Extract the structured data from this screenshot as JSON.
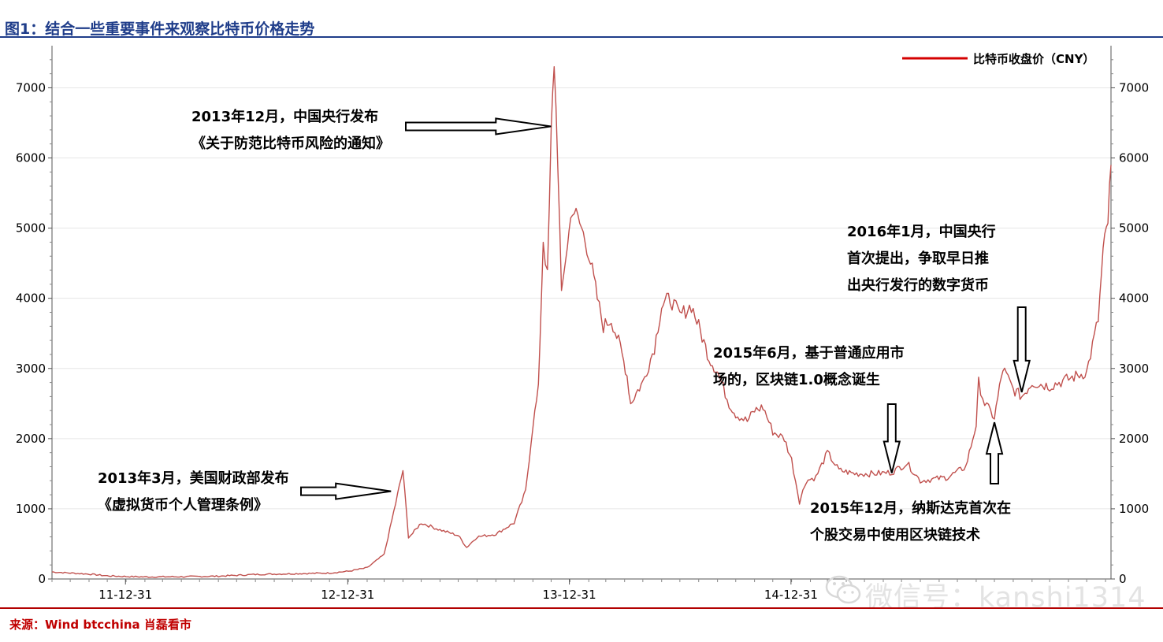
{
  "header": {
    "title": "图1：结合一些重要事件来观察比特币价格走势"
  },
  "footer": {
    "source": "来源：Wind btcchina 肖磊看市"
  },
  "watermark": {
    "text": "微信号：kanshi1314"
  },
  "colors": {
    "series": "#c0504d",
    "title": "#1f3d8a",
    "source": "#c00000",
    "legend_line": "#d40000"
  },
  "chart_data": {
    "type": "line",
    "title": "",
    "xlabel": "",
    "ylabel": "",
    "legend": {
      "position": "top-right",
      "label": "比特币收盘价（CNY）"
    },
    "x_ticks": [
      "11-12-31",
      "12-12-31",
      "13-12-31",
      "14-12-31"
    ],
    "y_ticks": [
      0,
      1000,
      2000,
      3000,
      4000,
      5000,
      6000,
      7000
    ],
    "ylim": [
      0,
      7600
    ],
    "xlim": [
      "2011-09-01",
      "2016-06-10"
    ],
    "grid": "horizontal",
    "series": [
      {
        "name": "比特币收盘价（CNY）",
        "x": [
          "2011-09-01",
          "2011-10-01",
          "2011-11-01",
          "2011-12-01",
          "2012-01-01",
          "2012-02-01",
          "2012-04-01",
          "2012-06-01",
          "2012-08-01",
          "2012-09-01",
          "2012-10-01",
          "2012-12-01",
          "2013-01-01",
          "2013-02-01",
          "2013-03-01",
          "2013-03-20",
          "2013-04-01",
          "2013-04-10",
          "2013-04-17",
          "2013-05-01",
          "2013-06-01",
          "2013-07-01",
          "2013-07-15",
          "2013-08-01",
          "2013-09-01",
          "2013-10-01",
          "2013-10-20",
          "2013-11-01",
          "2013-11-10",
          "2013-11-18",
          "2013-11-25",
          "2013-12-01",
          "2013-12-06",
          "2013-12-12",
          "2013-12-18",
          "2013-12-25",
          "2014-01-05",
          "2014-01-20",
          "2014-02-01",
          "2014-02-15",
          "2014-02-25",
          "2014-03-10",
          "2014-03-25",
          "2014-04-05",
          "2014-04-11",
          "2014-04-20",
          "2014-05-01",
          "2014-05-20",
          "2014-06-01",
          "2014-06-15",
          "2014-07-01",
          "2014-07-20",
          "2014-08-01",
          "2014-08-18",
          "2014-09-01",
          "2014-09-20",
          "2014-10-01",
          "2014-10-20",
          "2014-11-01",
          "2014-11-15",
          "2014-12-01",
          "2014-12-20",
          "2015-01-01",
          "2015-01-14",
          "2015-01-25",
          "2015-02-10",
          "2015-03-01",
          "2015-03-20",
          "2015-04-15",
          "2015-05-15",
          "2015-06-15",
          "2015-07-10",
          "2015-08-01",
          "2015-08-20",
          "2015-09-15",
          "2015-10-15",
          "2015-11-01",
          "2015-11-05",
          "2015-11-15",
          "2015-12-01",
          "2015-12-15",
          "2016-01-01",
          "2016-01-15",
          "2016-02-01",
          "2016-03-01",
          "2016-04-01",
          "2016-05-01",
          "2016-05-20",
          "2016-05-28",
          "2016-06-05",
          "2016-06-10"
        ],
        "values": [
          100,
          85,
          70,
          45,
          35,
          30,
          32,
          40,
          65,
          70,
          75,
          85,
          110,
          160,
          350,
          1080,
          1550,
          600,
          650,
          800,
          700,
          620,
          450,
          600,
          640,
          800,
          1250,
          2200,
          2700,
          4850,
          4300,
          6300,
          7400,
          6000,
          4000,
          4600,
          5300,
          5000,
          4650,
          4000,
          3600,
          3700,
          3300,
          2900,
          2500,
          2650,
          2800,
          3300,
          3900,
          4000,
          3750,
          3900,
          3600,
          3150,
          2950,
          2500,
          2350,
          2250,
          2400,
          2450,
          2100,
          2000,
          1700,
          1100,
          1400,
          1450,
          1800,
          1550,
          1500,
          1500,
          1520,
          1650,
          1400,
          1420,
          1450,
          1600,
          2200,
          2800,
          2500,
          2300,
          3000,
          2700,
          2600,
          2800,
          2750,
          2850,
          2950,
          3700,
          4650,
          5100,
          5900
        ]
      }
    ],
    "annotations": [
      {
        "lines": [
          "2013年3月，美国财政部发布",
          "《虚拟货币个人管理条例》"
        ],
        "date": "2013-03-20",
        "value": 1250,
        "arrow": "right"
      },
      {
        "lines": [
          "2013年12月，中国央行发布",
          "《关于防范比特币风险的通知》"
        ],
        "date": "2013-12-06",
        "value": 6450,
        "arrow": "right"
      },
      {
        "lines": [
          "2015年6月，基于普通应用市",
          "场的，区块链1.0概念诞生"
        ],
        "date": "2015-06-15",
        "value": 1600,
        "arrow": "down"
      },
      {
        "lines": [
          "2015年12月，纳斯达克首次在",
          "个股交易中使用区块链技术"
        ],
        "date": "2015-12-01",
        "value": 2300,
        "arrow": "up"
      },
      {
        "lines": [
          "2016年1月，中国央行",
          "首次提出，争取早日推",
          "出央行发行的数字货币"
        ],
        "date": "2016-01-15",
        "value": 2550,
        "arrow": "down"
      }
    ]
  }
}
